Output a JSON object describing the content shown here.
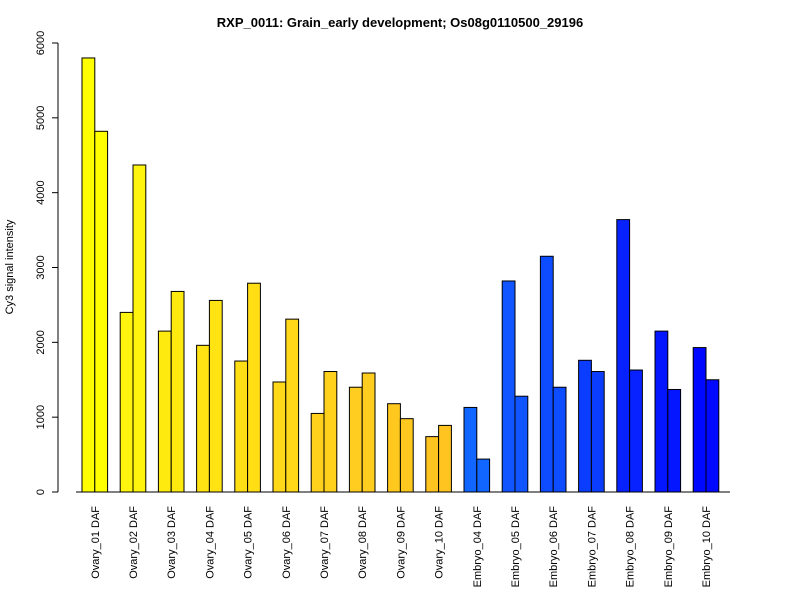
{
  "chart_data": {
    "type": "bar",
    "title": "RXP_0011: Grain_early development; Os08g0110500_29196",
    "xlabel": "",
    "ylabel": "Cy3 signal intensity",
    "ylim": [
      0,
      6000
    ],
    "yticks": [
      "0",
      "1000",
      "2000",
      "3000",
      "4000",
      "5000",
      "6000"
    ],
    "grid": false,
    "legend": "none",
    "categories": [
      "Ovary_01 DAF",
      "Ovary_02 DAF",
      "Ovary_03 DAF",
      "Ovary_04 DAF",
      "Ovary_05 DAF",
      "Ovary_06 DAF",
      "Ovary_07 DAF",
      "Ovary_08 DAF",
      "Ovary_09 DAF",
      "Ovary_10 DAF",
      "Embryo_04 DAF",
      "Embryo_05 DAF",
      "Embryo_06 DAF",
      "Embryo_07 DAF",
      "Embryo_08 DAF",
      "Embryo_09 DAF",
      "Embryo_10 DAF"
    ],
    "series": [
      {
        "values": [
          5800,
          2400,
          2150,
          1960,
          1750,
          1470,
          1050,
          1400,
          1180,
          740,
          1130,
          2820,
          3150,
          1760,
          3640,
          2150,
          1930
        ]
      },
      {
        "values": [
          4820,
          4370,
          2680,
          2560,
          2790,
          2310,
          1610,
          1590,
          980,
          890,
          440,
          1280,
          1400,
          1610,
          1630,
          1370,
          1500
        ]
      }
    ],
    "colors": [
      "#ffff00",
      "#fff40e",
      "#ffea10",
      "#ffe312",
      "#ffde16",
      "#ffd81a",
      "#ffd11c",
      "#ffcd20",
      "#ffc81e",
      "#ffc420",
      "#1166ff",
      "#1055ff",
      "#0d4dff",
      "#0a3dff",
      "#0722ff",
      "#0415ff",
      "#0008ff"
    ]
  }
}
